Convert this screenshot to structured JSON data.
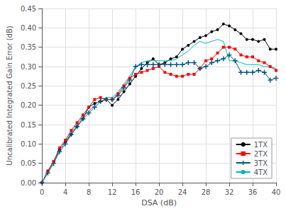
{
  "chart_data": {
    "type": "line",
    "xlabel": "DSA (dB)",
    "ylabel": "Uncalibrated Integrated Gain Error (dB)",
    "x": [
      0,
      1,
      2,
      3,
      4,
      5,
      6,
      7,
      8,
      9,
      10,
      11,
      12,
      13,
      14,
      15,
      16,
      17,
      18,
      19,
      20,
      21,
      22,
      23,
      24,
      25,
      26,
      27,
      28,
      29,
      30,
      31,
      32,
      33,
      34,
      35,
      36,
      37,
      38,
      39,
      40
    ],
    "xlim": [
      0,
      40
    ],
    "xticks": [
      0,
      4,
      8,
      12,
      16,
      20,
      24,
      28,
      32,
      36,
      40
    ],
    "ylim": [
      0,
      0.45
    ],
    "yticks": [
      {
        "value": 0,
        "label": "0.00"
      },
      0.05,
      {
        "value": 0.1,
        "label": "0.10"
      },
      0.15,
      {
        "value": 0.2,
        "label": "0.20"
      },
      0.25,
      {
        "value": 0.3,
        "label": "0.30"
      },
      0.35,
      {
        "value": 0.4,
        "label": "0.40"
      },
      0.45
    ],
    "grid": true,
    "legend": "lower right",
    "series": [
      {
        "name": "1TX",
        "color": "#000000",
        "marker": "circle",
        "values": [
          0.0,
          0.03,
          0.055,
          0.085,
          0.105,
          0.125,
          0.145,
          0.165,
          0.195,
          0.205,
          0.21,
          0.215,
          0.2,
          0.215,
          0.235,
          0.255,
          0.275,
          0.295,
          0.31,
          0.32,
          0.305,
          0.31,
          0.32,
          0.325,
          0.345,
          0.355,
          0.365,
          0.375,
          0.38,
          0.39,
          0.395,
          0.41,
          0.405,
          0.395,
          0.385,
          0.37,
          0.37,
          0.365,
          0.37,
          0.345,
          0.345
        ]
      },
      {
        "name": "2TX",
        "color": "#ff0000",
        "marker": "square",
        "values": [
          0.0,
          0.03,
          0.055,
          0.09,
          0.11,
          0.135,
          0.155,
          0.175,
          0.195,
          0.215,
          0.22,
          0.215,
          0.215,
          0.23,
          0.25,
          0.27,
          0.28,
          0.285,
          0.29,
          0.295,
          0.3,
          0.285,
          0.28,
          0.275,
          0.275,
          0.28,
          0.28,
          0.295,
          0.315,
          0.32,
          0.335,
          0.35,
          0.35,
          0.345,
          0.33,
          0.325,
          0.325,
          0.315,
          0.31,
          0.3,
          0.29
        ]
      },
      {
        "name": "3TX",
        "color": "#005580",
        "marker": "plus",
        "values": [
          0.0,
          0.025,
          0.05,
          0.08,
          0.1,
          0.125,
          0.145,
          0.165,
          0.18,
          0.195,
          0.21,
          0.215,
          0.215,
          0.225,
          0.245,
          0.265,
          0.3,
          0.305,
          0.305,
          0.305,
          0.305,
          0.305,
          0.305,
          0.305,
          0.305,
          0.31,
          0.31,
          0.295,
          0.3,
          0.31,
          0.315,
          0.32,
          0.33,
          0.315,
          0.285,
          0.285,
          0.285,
          0.29,
          0.285,
          0.265,
          0.27
        ]
      },
      {
        "name": "4TX",
        "color": "#00b8b8",
        "marker": "none",
        "values": [
          0.0,
          0.025,
          0.05,
          0.085,
          0.105,
          0.13,
          0.15,
          0.17,
          0.185,
          0.2,
          0.215,
          0.22,
          0.22,
          0.235,
          0.255,
          0.275,
          0.3,
          0.31,
          0.315,
          0.315,
          0.315,
          0.315,
          0.315,
          0.32,
          0.33,
          0.34,
          0.355,
          0.365,
          0.36,
          0.365,
          0.37,
          0.365,
          0.315,
          0.315,
          0.31,
          0.305,
          0.305,
          0.305,
          0.3,
          0.3,
          0.295
        ]
      }
    ]
  }
}
